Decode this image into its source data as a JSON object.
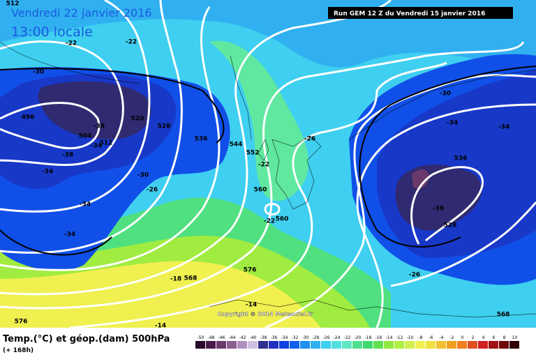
{
  "header": {
    "date": "Vendredi 22 janvier 2016",
    "time": "13:00 locale",
    "run": "Run GEM 12 Z du Vendredi 15 janvier 2016"
  },
  "map": {
    "labels": [
      "512",
      "-22",
      "-22",
      "-30",
      "496",
      "504",
      "-38",
      "-34",
      "512",
      "520",
      "528",
      "-38",
      "-34",
      "536",
      "544",
      "552",
      "-22",
      "-26",
      "-30",
      "-26",
      "-34",
      "-34",
      "560",
      "-22",
      "560",
      "576",
      "-18",
      "568",
      "-14",
      "576",
      "-14",
      "-30",
      "-34",
      "-34",
      "536",
      "-38",
      "528",
      "-26",
      "568"
    ],
    "copyright": "Copyright © 2014 Meteociel.fr"
  },
  "legend": {
    "title": "Temp.(°C) et géop.(dam) 500hPa",
    "lead": "(+ 168h)",
    "scale": [
      -50,
      -48,
      -46,
      -44,
      -42,
      -40,
      -38,
      -36,
      -34,
      -32,
      -30,
      -28,
      -26,
      -24,
      -22,
      -20,
      -18,
      -16,
      -14,
      -12,
      -10,
      -8,
      -6,
      -4,
      -2,
      0,
      2,
      4,
      6,
      8,
      10
    ],
    "colors": [
      "#2a0a2a",
      "#4a1a4a",
      "#6a3a6a",
      "#8a6090",
      "#b090c0",
      "#d0c0e0",
      "#303090",
      "#2030c0",
      "#1040e0",
      "#1060f0",
      "#2090f0",
      "#30b0f0",
      "#40d0f0",
      "#50e0e0",
      "#60e8c0",
      "#50e090",
      "#40d870",
      "#60e050",
      "#90e840",
      "#b0f040",
      "#d0f050",
      "#f0f050",
      "#f0e040",
      "#f0c030",
      "#f0a020",
      "#f08020",
      "#e05020",
      "#d02020",
      "#a01010",
      "#700808",
      "#300000"
    ]
  }
}
